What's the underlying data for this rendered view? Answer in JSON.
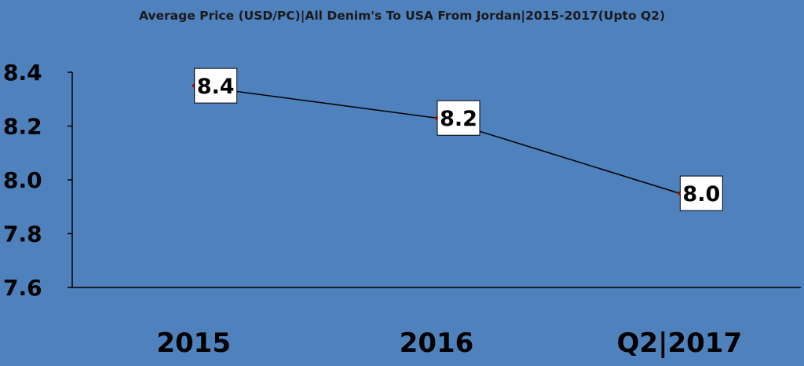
{
  "chart_data": {
    "type": "line",
    "title": "Average Price (USD/PC)|All Denim's To USA From Jordan|2015-2017(Upto Q2)",
    "categories": [
      "2015",
      "2016",
      "Q2|2017"
    ],
    "values": [
      8.35,
      8.23,
      7.95
    ],
    "data_labels": [
      "8.4",
      "8.2",
      "8.0"
    ],
    "ylim": [
      7.6,
      8.4
    ],
    "yticks": [
      "7.6",
      "7.8",
      "8.0",
      "8.2",
      "8.4"
    ],
    "grid": false,
    "colors": {
      "background": "#4f81bd",
      "line": "#000000",
      "marker": "#c00000",
      "label_box": "#ffffff"
    }
  }
}
